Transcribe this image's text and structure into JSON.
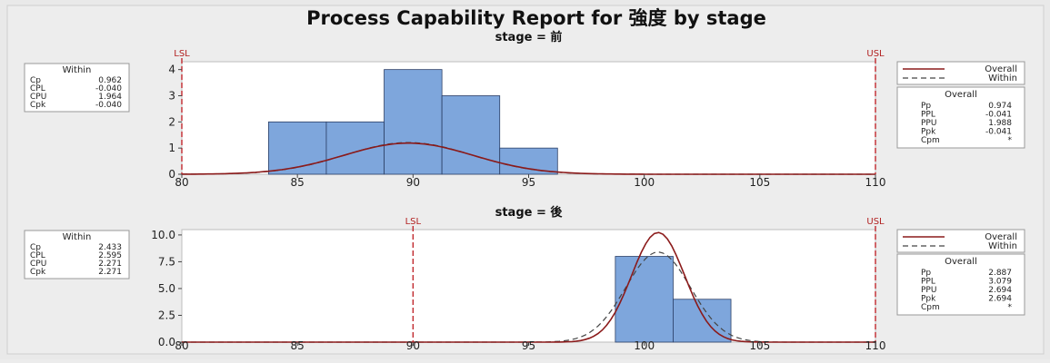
{
  "title": "Process Capability Report for 強度 by stage",
  "chart_data": [
    {
      "type": "histogram",
      "panel_title": "stage = 前",
      "bins": [
        {
          "x0": 83.75,
          "x1": 86.25,
          "count": 2
        },
        {
          "x0": 86.25,
          "x1": 88.75,
          "count": 2
        },
        {
          "x0": 88.75,
          "x1": 91.25,
          "count": 4
        },
        {
          "x0": 91.25,
          "x1": 93.75,
          "count": 3
        },
        {
          "x0": 93.75,
          "x1": 96.25,
          "count": 1
        }
      ],
      "xlim": [
        80,
        110
      ],
      "xticks": [
        "80",
        "85",
        "90",
        "95",
        "100",
        "105",
        "110"
      ],
      "ylim": [
        0,
        4.3
      ],
      "yticks": [
        {
          "v": 0,
          "label": "0"
        },
        {
          "v": 1,
          "label": "1"
        },
        {
          "v": 2,
          "label": "2"
        },
        {
          "v": 3,
          "label": "3"
        },
        {
          "v": 4,
          "label": "4"
        }
      ],
      "lsl": {
        "label": "LSL",
        "value": 80
      },
      "usl": {
        "label": "USL",
        "value": 110
      },
      "curves": {
        "mean": 89.8,
        "overall_sd": 2.8,
        "within_sd": 2.75,
        "scale": 8.35
      },
      "within_box": {
        "title": "Within",
        "rows": [
          [
            "Cp",
            "0.962"
          ],
          [
            "CPL",
            "-0.040"
          ],
          [
            "CPU",
            "1.964"
          ],
          [
            "Cpk",
            "-0.040"
          ]
        ]
      },
      "legend": {
        "overall": "Overall",
        "within": "Within"
      },
      "overall_box": {
        "title": "Overall",
        "rows": [
          [
            "Pp",
            "0.974"
          ],
          [
            "PPL",
            "-0.041"
          ],
          [
            "PPU",
            "1.988"
          ],
          [
            "Ppk",
            "-0.041"
          ],
          [
            "Cpm",
            "*"
          ]
        ]
      }
    },
    {
      "type": "histogram",
      "panel_title": "stage = 後",
      "bins": [
        {
          "x0": 98.75,
          "x1": 101.25,
          "count": 8
        },
        {
          "x0": 101.25,
          "x1": 103.75,
          "count": 4
        }
      ],
      "xlim": [
        80,
        110
      ],
      "xticks": [
        "80",
        "85",
        "90",
        "95",
        "100",
        "105",
        "110"
      ],
      "ylim": [
        0,
        10.5
      ],
      "yticks": [
        {
          "v": 0,
          "label": "0.0"
        },
        {
          "v": 2.5,
          "label": "2.5"
        },
        {
          "v": 5,
          "label": "5.0"
        },
        {
          "v": 7.5,
          "label": "7.5"
        },
        {
          "v": 10,
          "label": "10.0"
        }
      ],
      "lsl": {
        "label": "LSL",
        "value": 90
      },
      "usl": {
        "label": "USL",
        "value": 110
      },
      "curves": {
        "mean": 100.6,
        "overall_sd": 1.15,
        "within_sd": 1.4,
        "scale": 29.5
      },
      "within_box": {
        "title": "Within",
        "rows": [
          [
            "Cp",
            "2.433"
          ],
          [
            "CPL",
            "2.595"
          ],
          [
            "CPU",
            "2.271"
          ],
          [
            "Cpk",
            "2.271"
          ]
        ]
      },
      "legend": {
        "overall": "Overall",
        "within": "Within"
      },
      "overall_box": {
        "title": "Overall",
        "rows": [
          [
            "Pp",
            "2.887"
          ],
          [
            "PPL",
            "3.079"
          ],
          [
            "PPU",
            "2.694"
          ],
          [
            "Ppk",
            "2.694"
          ],
          [
            "Cpm",
            "*"
          ]
        ]
      }
    }
  ],
  "colors": {
    "bar_fill": "#7ea6dc",
    "bar_stroke": "#2b3f66",
    "overall_curve": "#8b1a1a",
    "within_curve": "#444444",
    "spec_line": "#c0282d",
    "plot_bg": "#ffffff",
    "page_bg": "#e9e9e9"
  }
}
